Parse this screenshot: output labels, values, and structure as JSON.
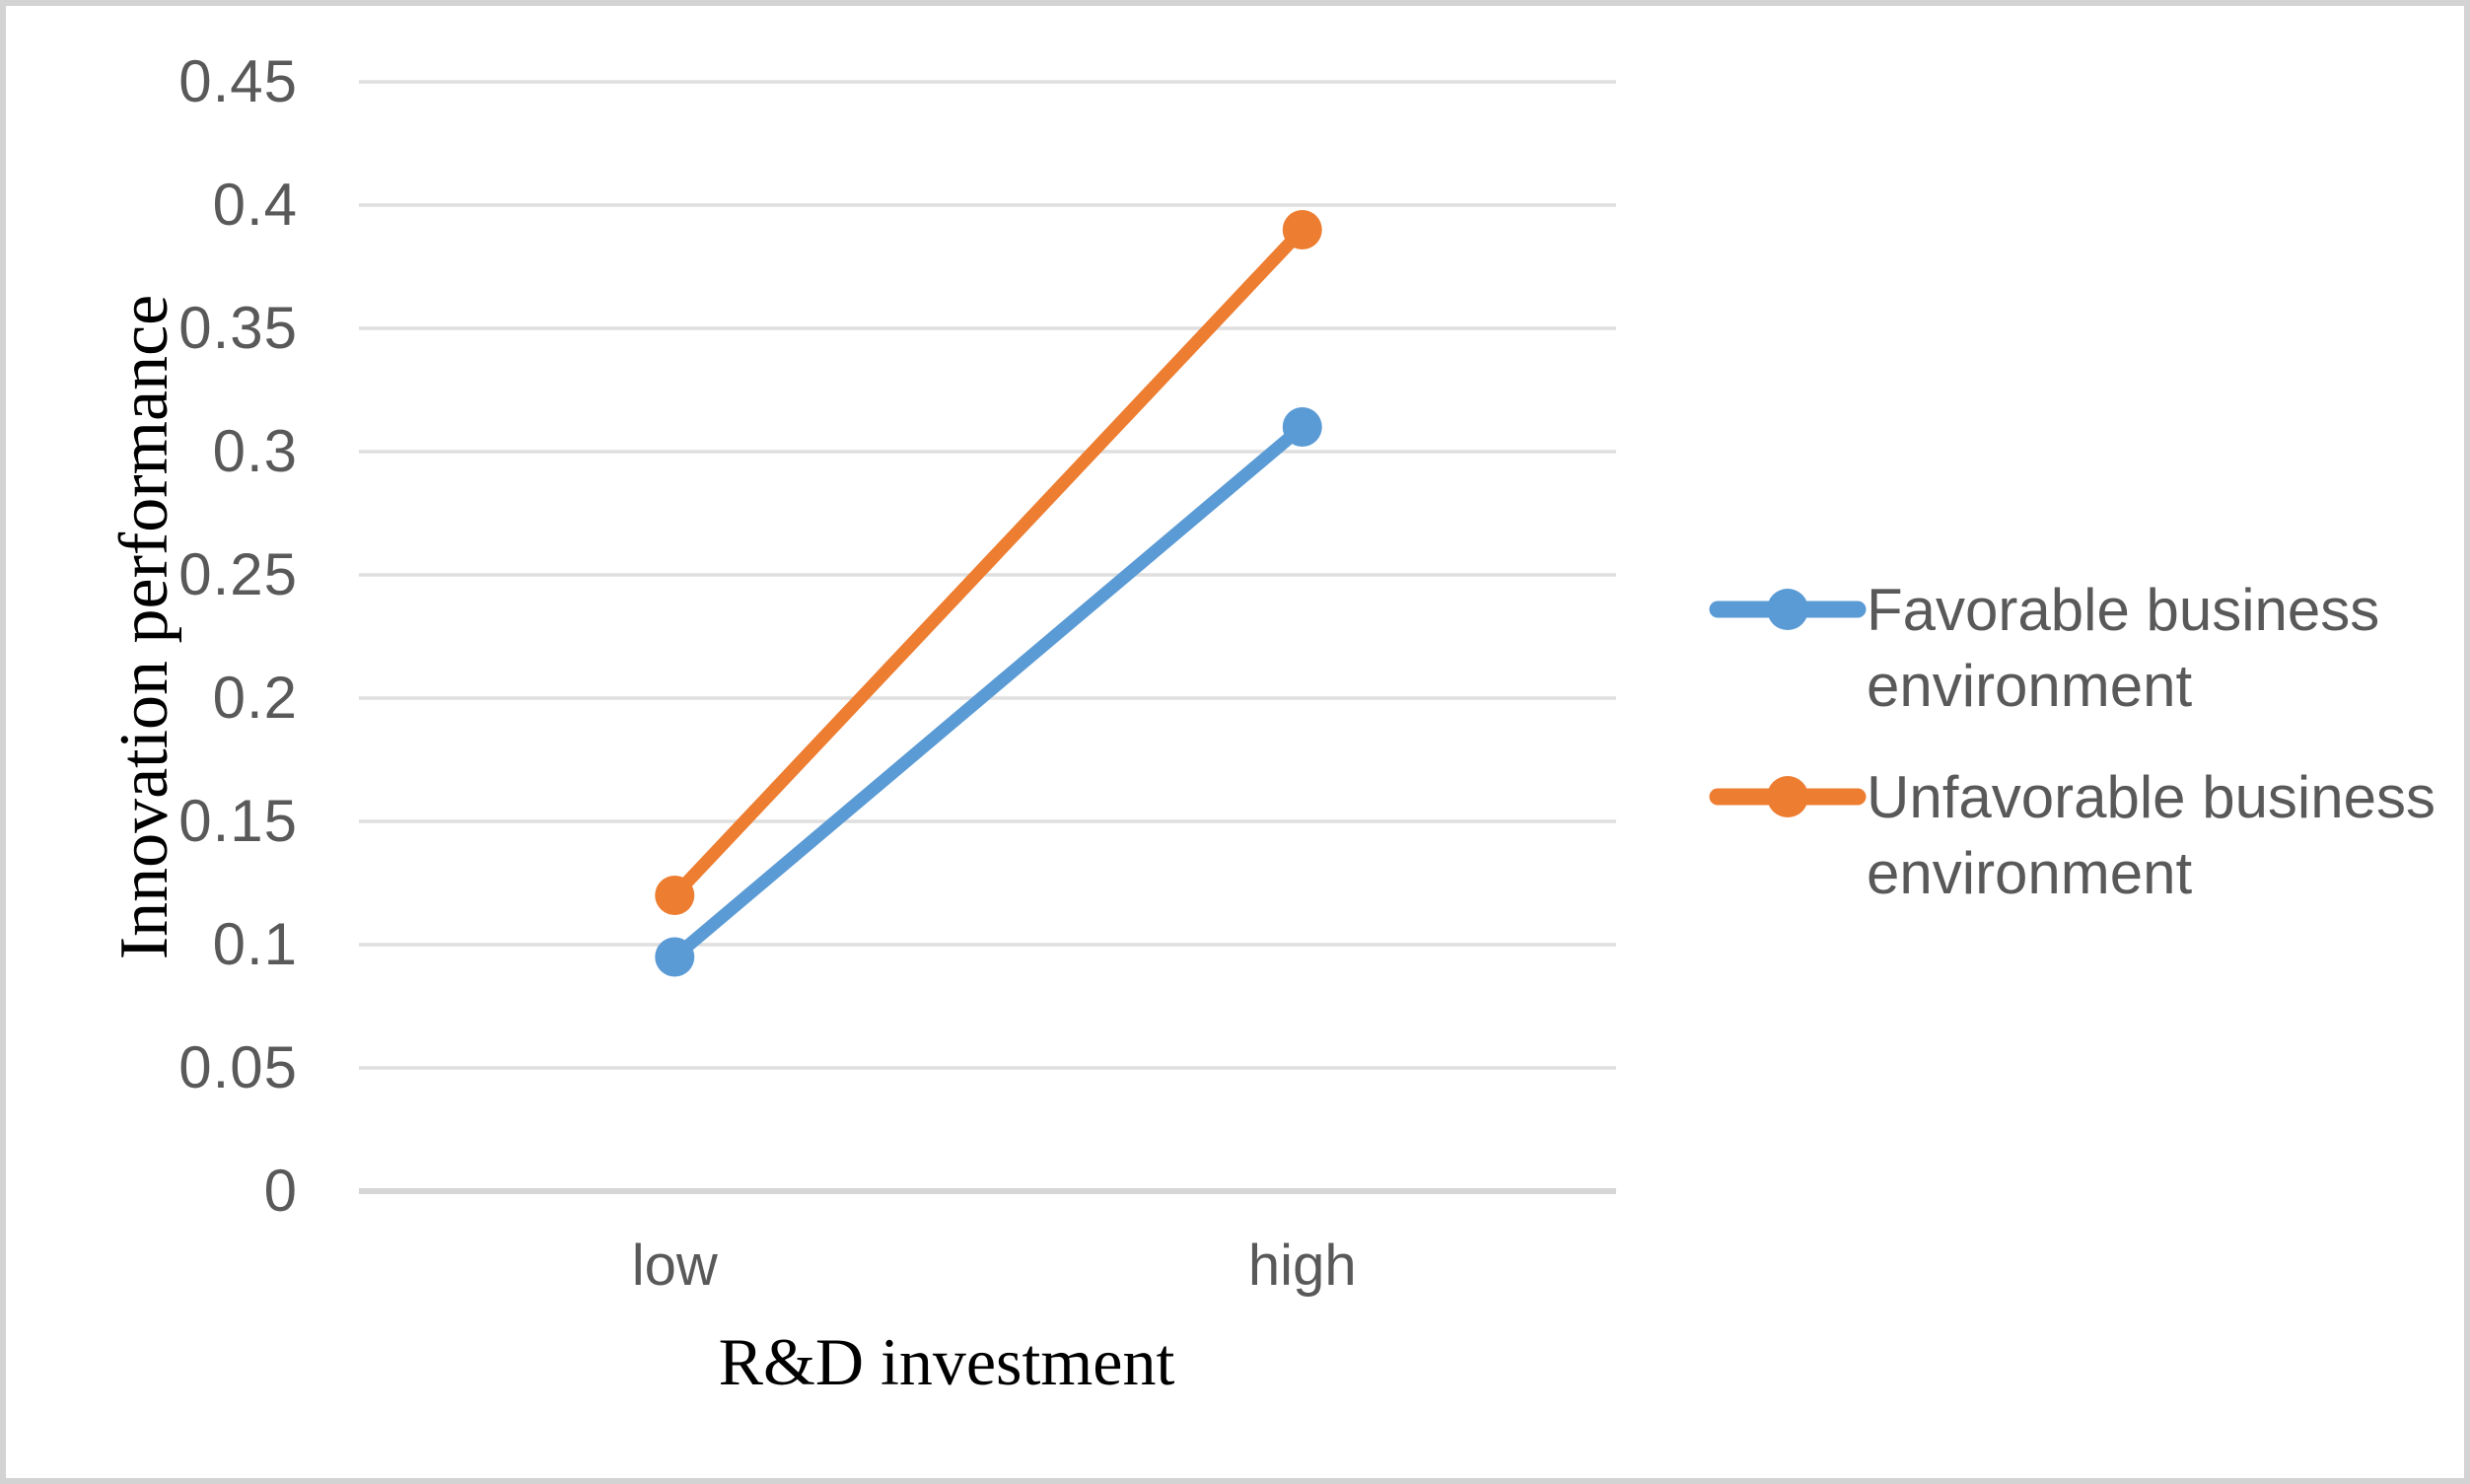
{
  "chart_data": {
    "type": "line",
    "title": "",
    "xlabel": "R&D investment",
    "ylabel": "Innovation performance",
    "categories": [
      "low",
      "high"
    ],
    "series": [
      {
        "name": "Favorable business environment",
        "values": [
          0.095,
          0.31
        ],
        "color": "#5B9BD5"
      },
      {
        "name": "Unfavorable business environment",
        "values": [
          0.12,
          0.39
        ],
        "color": "#ED7D31"
      }
    ],
    "ylim": [
      0,
      0.45
    ],
    "yticks": [
      {
        "value": 0,
        "label": "0"
      },
      {
        "value": 0.05,
        "label": "0.05"
      },
      {
        "value": 0.1,
        "label": "0.1"
      },
      {
        "value": 0.15,
        "label": "0.15"
      },
      {
        "value": 0.2,
        "label": "0.2"
      },
      {
        "value": 0.25,
        "label": "0.25"
      },
      {
        "value": 0.3,
        "label": "0.3"
      },
      {
        "value": 0.35,
        "label": "0.35"
      },
      {
        "value": 0.4,
        "label": "0.4"
      },
      {
        "value": 0.45,
        "label": "0.45"
      }
    ],
    "grid": true,
    "legend_position": "right"
  },
  "colors": {
    "gridline": "#dfdfdf",
    "axis_line": "#d6d6d6",
    "tick_text": "#595959",
    "legend_text": "#595959",
    "title_text": "#000000"
  }
}
